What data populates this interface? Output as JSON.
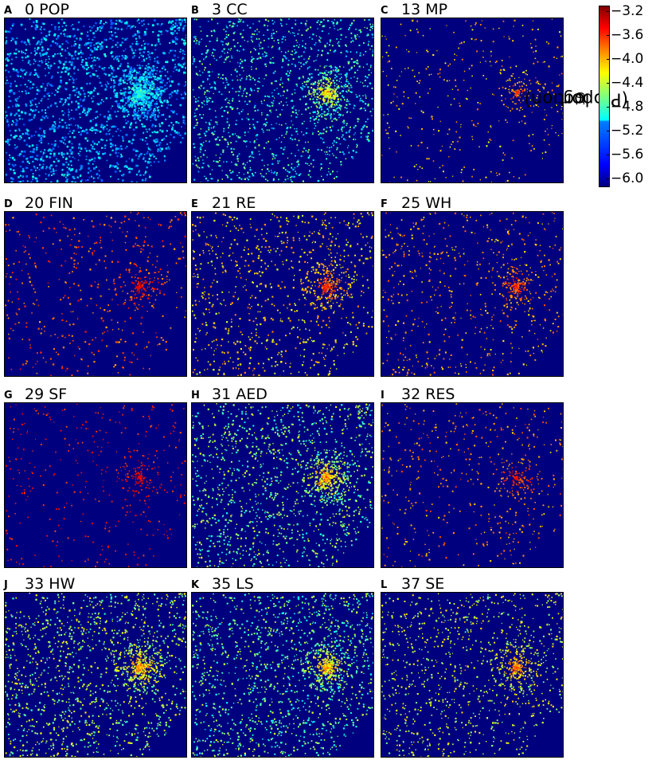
{
  "chart_data": {
    "type": "heatmap",
    "panels": [
      {
        "label": "A",
        "title": "0 POP"
      },
      {
        "label": "B",
        "title": "3 CC"
      },
      {
        "label": "C",
        "title": "13 MP"
      },
      {
        "label": "D",
        "title": "20 FIN"
      },
      {
        "label": "E",
        "title": "21 RE"
      },
      {
        "label": "F",
        "title": "25 WH"
      },
      {
        "label": "G",
        "title": "29 SF"
      },
      {
        "label": "H",
        "title": "31 AED"
      },
      {
        "label": "I",
        "title": "32 RES"
      },
      {
        "label": "J",
        "title": "33 HW"
      },
      {
        "label": "K",
        "title": "35 LS"
      },
      {
        "label": "L",
        "title": "37 SE"
      }
    ],
    "colorbar": {
      "label_main": "log",
      "label_sub": "10",
      "label_rest": "(Proportion)",
      "ticks": [
        "−3.2",
        "−3.6",
        "−4.0",
        "−4.4",
        "−4.8",
        "−5.2",
        "−5.6",
        "−6.0"
      ],
      "tick_values": [
        -3.2,
        -3.6,
        -4.0,
        -4.4,
        -4.8,
        -5.2,
        -5.6,
        -6.0
      ],
      "range": [
        -6.1,
        -3.1
      ],
      "colormap": "jet"
    },
    "colors": {
      "background": "#00007f"
    }
  }
}
